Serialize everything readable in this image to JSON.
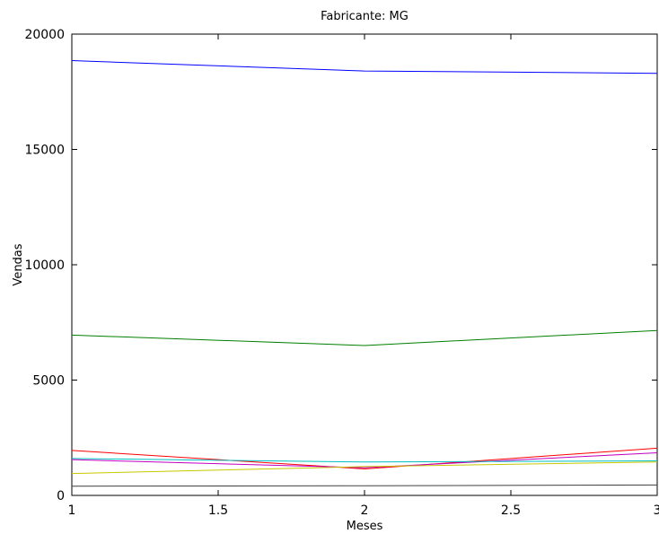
{
  "chart_data": {
    "type": "line",
    "title": "Fabricante: MG",
    "xlabel": "Meses",
    "ylabel": "Vendas",
    "xlim": [
      1,
      3
    ],
    "ylim": [
      0,
      20000
    ],
    "xticks": [
      1,
      1.5,
      2,
      2.5,
      3
    ],
    "xtick_labels": [
      "1",
      "1.5",
      "2",
      "2.5",
      "3"
    ],
    "yticks": [
      0,
      5000,
      10000,
      15000,
      20000
    ],
    "ytick_labels": [
      "0",
      "5000",
      "10000",
      "15000",
      "20000"
    ],
    "grid": false,
    "x": [
      1,
      2,
      3
    ],
    "series": [
      {
        "color": "#0000ff",
        "values": [
          18850,
          18400,
          18300
        ]
      },
      {
        "color": "#008000",
        "values": [
          6950,
          6500,
          7150
        ]
      },
      {
        "color": "#ff0000",
        "values": [
          1950,
          1150,
          2050
        ]
      },
      {
        "color": "#bf00bf",
        "values": [
          1550,
          1200,
          1850
        ]
      },
      {
        "color": "#00bfbf",
        "values": [
          1600,
          1450,
          1500
        ]
      },
      {
        "color": "#c8c800",
        "values": [
          950,
          1250,
          1450
        ]
      },
      {
        "color": "#404040",
        "values": [
          400,
          420,
          450
        ]
      }
    ]
  }
}
